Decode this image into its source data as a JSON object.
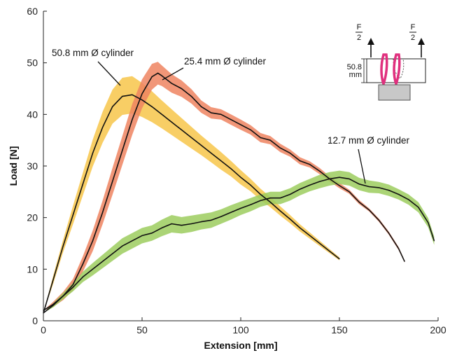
{
  "chart_data": {
    "type": "line",
    "title": "",
    "xlabel": "Extension [mm]",
    "ylabel": "Load [N]",
    "xlim": [
      0,
      200
    ],
    "ylim": [
      0,
      60
    ],
    "xticks": [
      0,
      50,
      100,
      150,
      200
    ],
    "yticks": [
      0,
      10,
      20,
      30,
      40,
      50,
      60
    ],
    "grid": false,
    "series": [
      {
        "name": "50.8 mm Ø cylinder",
        "band_color": "#f7c64a",
        "x": [
          0,
          5,
          10,
          15,
          20,
          25,
          30,
          35,
          40,
          45,
          50,
          55,
          60,
          65,
          70,
          75,
          80,
          85,
          90,
          95,
          100,
          105,
          110,
          115,
          120,
          125,
          130,
          135,
          140,
          145,
          150
        ],
        "y": [
          1.5,
          8,
          14.5,
          20.5,
          26.5,
          32.5,
          37.5,
          41.5,
          43.5,
          43.8,
          42.8,
          41.5,
          40,
          38.5,
          37,
          35.5,
          34,
          32.5,
          31,
          29.5,
          27.8,
          26.3,
          24.5,
          23,
          21.3,
          19.7,
          18,
          16.5,
          15,
          13.5,
          12
        ],
        "band": [
          0,
          0.8,
          1.2,
          1.8,
          2.2,
          2.6,
          3,
          3.3,
          3.6,
          3.6,
          3.3,
          3,
          2.7,
          2.5,
          2.3,
          2.1,
          1.9,
          1.8,
          1.7,
          1.5,
          1.4,
          1.2,
          1.1,
          1,
          0.9,
          0.8,
          0.7,
          0.6,
          0.5,
          0.4,
          0.3
        ]
      },
      {
        "name": "25.4 mm Ø cylinder",
        "band_color": "#ef8460",
        "x": [
          0,
          5,
          10,
          15,
          20,
          25,
          30,
          35,
          40,
          45,
          50,
          55,
          58,
          60,
          65,
          70,
          75,
          80,
          85,
          90,
          95,
          100,
          105,
          110,
          115,
          120,
          125,
          130,
          135,
          140,
          145,
          150,
          155,
          160,
          165,
          170,
          175,
          180,
          183
        ],
        "y": [
          2,
          3.2,
          4.8,
          7,
          11,
          15.5,
          21,
          27,
          33,
          39,
          44,
          47.3,
          48,
          47.5,
          46,
          45,
          43.5,
          41.5,
          40.3,
          40,
          39,
          38,
          37,
          35.5,
          35,
          33.5,
          32.5,
          31,
          30.3,
          29,
          27.5,
          26.2,
          25,
          23,
          21.5,
          19.5,
          17,
          14,
          11.5
        ],
        "band": [
          0,
          0.5,
          0.8,
          1.1,
          1.5,
          2,
          2.3,
          2.6,
          2.8,
          3,
          2.8,
          2.5,
          2.2,
          2,
          1.8,
          1.6,
          1.4,
          1.2,
          1.1,
          1,
          1,
          1,
          0.9,
          0.9,
          0.8,
          0.8,
          0.7,
          0.7,
          0.6,
          0.6,
          0.5,
          0.5,
          0.4,
          0.4,
          0.3,
          0.3,
          0.3,
          0.3,
          0.2
        ]
      },
      {
        "name": "12.7 mm Ø cylinder",
        "band_color": "#9ccc5e",
        "x": [
          0,
          5,
          10,
          15,
          20,
          25,
          30,
          35,
          40,
          45,
          50,
          55,
          60,
          65,
          70,
          75,
          80,
          85,
          90,
          95,
          100,
          105,
          110,
          115,
          120,
          125,
          130,
          135,
          140,
          145,
          150,
          155,
          160,
          165,
          170,
          175,
          180,
          185,
          190,
          195,
          198
        ],
        "y": [
          1.5,
          3,
          4.8,
          6.5,
          8.5,
          10,
          11.5,
          13,
          14.5,
          15.5,
          16.5,
          17,
          18,
          18.8,
          18.5,
          18.8,
          19.2,
          19.5,
          20.2,
          21,
          21.8,
          22.5,
          23.3,
          23.8,
          23.8,
          24.5,
          25.5,
          26.3,
          27,
          27.5,
          27.8,
          27.5,
          26.5,
          26,
          25.8,
          25.3,
          24.5,
          23.5,
          22,
          19,
          15.5
        ],
        "band": [
          0,
          0.4,
          0.6,
          0.8,
          1,
          1.2,
          1.3,
          1.4,
          1.5,
          1.5,
          1.5,
          1.5,
          1.6,
          1.7,
          1.6,
          1.6,
          1.5,
          1.5,
          1.4,
          1.4,
          1.3,
          1.3,
          1.2,
          1.2,
          1.2,
          1.2,
          1.2,
          1.2,
          1.3,
          1.3,
          1.3,
          1.3,
          1.2,
          1.2,
          1.1,
          1.1,
          1,
          1,
          1,
          0.9,
          0.8
        ]
      }
    ],
    "annotations": [
      {
        "text": "50.8 mm Ø cylinder",
        "target_series": 0
      },
      {
        "text": "25.4 mm Ø cylinder",
        "target_series": 1
      },
      {
        "text": "12.7 mm Ø cylinder",
        "target_series": 2
      }
    ]
  },
  "inset": {
    "force_left": "F",
    "force_right": "F",
    "denominator": "2",
    "dimension_value": "50.8",
    "dimension_unit": "mm",
    "colors": {
      "loop": "#e0307e",
      "block": "#c8c8c8"
    }
  }
}
